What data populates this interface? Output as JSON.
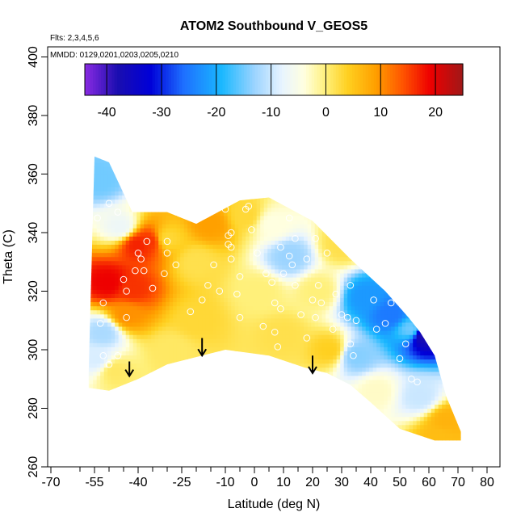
{
  "chart_data": {
    "type": "heatmap",
    "title": "ATOM2 Southbound V_GEOS5",
    "annotations": {
      "flights": "Flts: 2,3,4,5,6",
      "dates": "MMDD: 0129,0201,0203,0205,0210"
    },
    "xlabel": "Latitude (deg N)",
    "ylabel": "Theta (C)",
    "xlim": [
      -70,
      80
    ],
    "ylim": [
      260,
      400
    ],
    "x_ticks_major": [
      -70,
      -55,
      -40,
      -25,
      -10,
      0,
      10,
      20,
      30,
      40,
      50,
      60,
      70,
      80
    ],
    "x_ticks_minor": [
      -60,
      -50,
      -45,
      -35,
      -30,
      -20,
      -15,
      -5,
      5,
      15,
      25,
      35,
      45,
      55,
      65,
      75
    ],
    "y_ticks": [
      260,
      280,
      300,
      320,
      340,
      360,
      380,
      400
    ],
    "colorbar": {
      "range": [
        -44,
        25
      ],
      "ticks": [
        -40,
        -30,
        -20,
        -10,
        0,
        10,
        20
      ],
      "colors": [
        {
          "v": -44,
          "c": "#8a2be2"
        },
        {
          "v": -38,
          "c": "#1a0db0"
        },
        {
          "v": -32,
          "c": "#0000d8"
        },
        {
          "v": -26,
          "c": "#1e6fff"
        },
        {
          "v": -19,
          "c": "#1ab8ff"
        },
        {
          "v": -13,
          "c": "#9cd4ff"
        },
        {
          "v": -8,
          "c": "#e8f4ff"
        },
        {
          "v": -4,
          "c": "#ffffe0"
        },
        {
          "v": 0,
          "c": "#fff07a"
        },
        {
          "v": 4,
          "c": "#ffd020"
        },
        {
          "v": 9,
          "c": "#ffa000"
        },
        {
          "v": 14,
          "c": "#ff5500"
        },
        {
          "v": 19,
          "c": "#ee0000"
        },
        {
          "v": 25,
          "c": "#a01818"
        }
      ]
    },
    "region_outline": [
      [
        -57,
        292
      ],
      [
        -55,
        366
      ],
      [
        -50,
        364
      ],
      [
        -42,
        347
      ],
      [
        -30,
        347
      ],
      [
        -20,
        343
      ],
      [
        -5,
        351
      ],
      [
        5,
        352
      ],
      [
        20,
        344
      ],
      [
        33,
        331
      ],
      [
        45,
        320
      ],
      [
        53,
        311
      ],
      [
        57,
        306
      ],
      [
        62,
        298
      ],
      [
        66,
        284
      ],
      [
        71,
        272
      ],
      [
        71,
        269
      ],
      [
        62,
        269
      ],
      [
        50,
        273
      ],
      [
        40,
        282
      ],
      [
        33,
        288
      ],
      [
        25,
        292
      ],
      [
        17,
        294
      ],
      [
        5,
        298
      ],
      [
        -10,
        300
      ],
      [
        -22,
        297
      ],
      [
        -30,
        295
      ],
      [
        -40,
        290
      ],
      [
        -50,
        286
      ],
      [
        -57,
        287
      ]
    ],
    "field_nodes": [
      {
        "x": -53,
        "y": 358,
        "v": -15
      },
      {
        "x": -46,
        "y": 342,
        "v": -7
      },
      {
        "x": -40,
        "y": 336,
        "v": 17
      },
      {
        "x": -36,
        "y": 337,
        "v": 16
      },
      {
        "x": -50,
        "y": 323,
        "v": 19
      },
      {
        "x": -42,
        "y": 321,
        "v": 16
      },
      {
        "x": -52,
        "y": 306,
        "v": -12
      },
      {
        "x": -54,
        "y": 297,
        "v": -9
      },
      {
        "x": -44,
        "y": 312,
        "v": 10
      },
      {
        "x": -30,
        "y": 338,
        "v": 3
      },
      {
        "x": -20,
        "y": 330,
        "v": 2
      },
      {
        "x": -15,
        "y": 343,
        "v": 9
      },
      {
        "x": -3,
        "y": 346,
        "v": 3
      },
      {
        "x": 6,
        "y": 343,
        "v": -4
      },
      {
        "x": 12,
        "y": 332,
        "v": -13
      },
      {
        "x": 2,
        "y": 320,
        "v": 0
      },
      {
        "x": -20,
        "y": 310,
        "v": 3
      },
      {
        "x": -28,
        "y": 300,
        "v": 1
      },
      {
        "x": 10,
        "y": 305,
        "v": 2
      },
      {
        "x": 22,
        "y": 320,
        "v": 0
      },
      {
        "x": 30,
        "y": 336,
        "v": 2
      },
      {
        "x": 38,
        "y": 318,
        "v": -22
      },
      {
        "x": 47,
        "y": 312,
        "v": -25
      },
      {
        "x": 54,
        "y": 307,
        "v": -15
      },
      {
        "x": 58,
        "y": 305,
        "v": -38
      },
      {
        "x": 35,
        "y": 298,
        "v": -14
      },
      {
        "x": 42,
        "y": 286,
        "v": -3
      },
      {
        "x": 57,
        "y": 284,
        "v": -10
      },
      {
        "x": 66,
        "y": 276,
        "v": 7
      },
      {
        "x": 64,
        "y": 270,
        "v": 6
      },
      {
        "x": 26,
        "y": 300,
        "v": 4
      },
      {
        "x": -48,
        "y": 293,
        "v": 1
      }
    ],
    "observations": [
      [
        -54,
        345
      ],
      [
        -50,
        350
      ],
      [
        -47,
        347
      ],
      [
        -52,
        316
      ],
      [
        -53,
        309
      ],
      [
        -52,
        298
      ],
      [
        -47,
        298
      ],
      [
        -50,
        295
      ],
      [
        -44,
        311
      ],
      [
        -44,
        320
      ],
      [
        -45,
        324
      ],
      [
        -40,
        333
      ],
      [
        -41,
        327
      ],
      [
        -38,
        327
      ],
      [
        -39,
        331
      ],
      [
        -37,
        337
      ],
      [
        -35,
        321
      ],
      [
        -31,
        326
      ],
      [
        -30,
        333
      ],
      [
        -30,
        337
      ],
      [
        -27,
        329
      ],
      [
        -22,
        313
      ],
      [
        -19,
        345
      ],
      [
        -18,
        317
      ],
      [
        -16,
        322
      ],
      [
        -14,
        329
      ],
      [
        -12,
        320
      ],
      [
        -10,
        348
      ],
      [
        -9,
        339
      ],
      [
        -9,
        336
      ],
      [
        -8,
        340
      ],
      [
        -8,
        335
      ],
      [
        -8,
        331
      ],
      [
        -6,
        319
      ],
      [
        -5,
        311
      ],
      [
        -5,
        325
      ],
      [
        -3,
        348
      ],
      [
        -2,
        349
      ],
      [
        -1,
        341
      ],
      [
        1,
        333
      ],
      [
        3,
        308
      ],
      [
        4,
        326
      ],
      [
        6,
        323
      ],
      [
        7,
        316
      ],
      [
        7,
        306
      ],
      [
        8,
        301
      ],
      [
        9,
        335
      ],
      [
        9,
        314
      ],
      [
        10,
        326
      ],
      [
        12,
        332
      ],
      [
        12,
        345
      ],
      [
        13,
        329
      ],
      [
        14,
        338
      ],
      [
        14,
        322
      ],
      [
        16,
        312
      ],
      [
        18,
        331
      ],
      [
        18,
        304
      ],
      [
        20,
        317
      ],
      [
        21,
        311
      ],
      [
        21,
        338
      ],
      [
        22,
        322
      ],
      [
        23,
        316
      ],
      [
        25,
        333
      ],
      [
        27,
        307
      ],
      [
        28,
        319
      ],
      [
        30,
        312
      ],
      [
        32,
        311
      ],
      [
        33,
        302
      ],
      [
        33,
        322
      ],
      [
        34,
        298
      ],
      [
        35,
        310
      ],
      [
        37,
        282
      ],
      [
        41,
        317
      ],
      [
        42,
        307
      ],
      [
        44,
        274
      ],
      [
        45,
        309
      ],
      [
        47,
        316
      ],
      [
        50,
        297
      ],
      [
        52,
        302
      ],
      [
        53,
        313
      ],
      [
        54,
        290
      ],
      [
        56,
        289
      ],
      [
        58,
        307
      ],
      [
        62,
        307
      ]
    ],
    "arrows": [
      {
        "x": -43,
        "y_top": 296,
        "y_bottom": 291
      },
      {
        "x": -18,
        "y_top": 304,
        "y_bottom": 298
      },
      {
        "x": 20,
        "y_top": 298,
        "y_bottom": 292
      }
    ]
  }
}
